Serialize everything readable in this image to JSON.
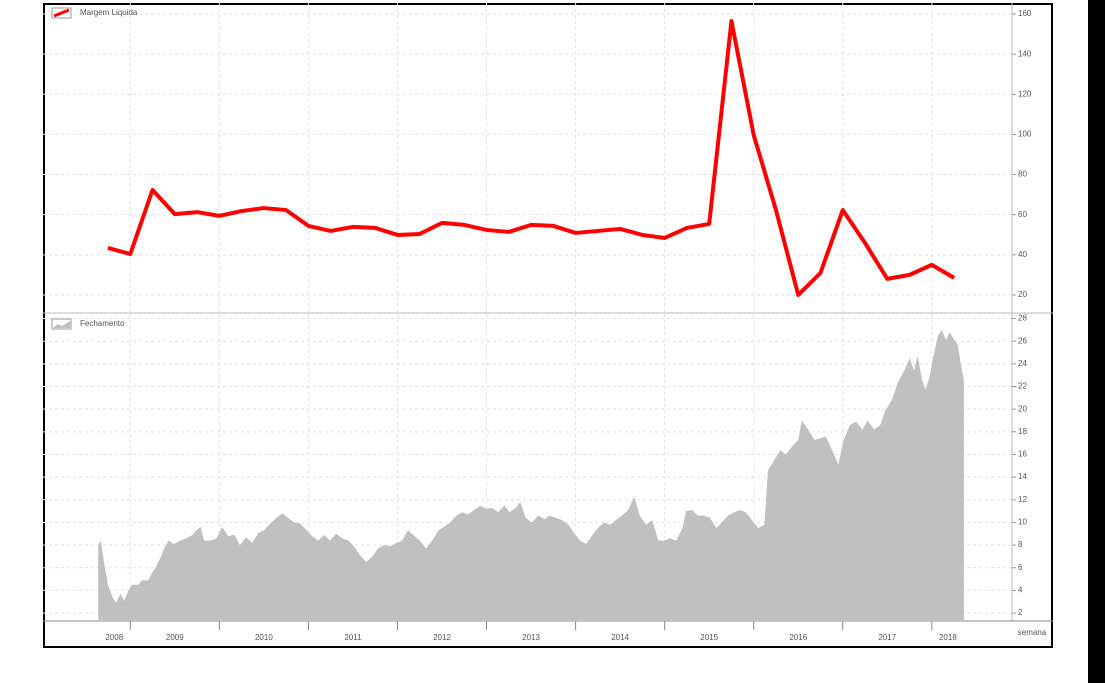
{
  "chart_data": [
    {
      "type": "line",
      "x": [
        2008.75,
        2009,
        2009.25,
        2009.5,
        2009.75,
        2010,
        2010.25,
        2010.5,
        2010.75,
        2011,
        2011.25,
        2011.5,
        2011.75,
        2012,
        2012.25,
        2012.5,
        2012.75,
        2013,
        2013.25,
        2013.5,
        2013.75,
        2014,
        2014.25,
        2014.5,
        2014.75,
        2015,
        2015.25,
        2015.5,
        2015.75,
        2016,
        2016.25,
        2016.5,
        2016.75,
        2017,
        2017.25,
        2017.5,
        2017.75,
        2018,
        2018.25
      ],
      "series": [
        {
          "name": "Margem Liquida",
          "color": "#ff0000",
          "values": [
            43.4,
            40.4,
            72.3,
            60.3,
            61.3,
            59.4,
            61.8,
            63.3,
            62.3,
            54.4,
            51.9,
            53.9,
            53.4,
            49.9,
            50.4,
            55.9,
            54.9,
            52.4,
            51.4,
            54.9,
            54.4,
            50.9,
            51.9,
            52.9,
            49.9,
            48.4,
            53.4,
            55.4,
            156.5,
            99.7,
            62.3,
            20,
            31,
            62.3,
            45.9,
            28,
            30,
            35,
            28.5
          ]
        }
      ],
      "xlim": [
        2008.02,
        2018.9
      ],
      "ylim": [
        11.5,
        165.5
      ],
      "yticks": [
        20,
        40,
        60,
        80,
        100,
        120,
        140,
        160
      ],
      "grid": true
    },
    {
      "type": "area",
      "x": [
        2008.64,
        2008.67,
        2008.71,
        2008.75,
        2008.8,
        2008.84,
        2008.89,
        2008.93,
        2008.98,
        2009.02,
        2009.09,
        2009.13,
        2009.2,
        2009.25,
        2009.29,
        2009.34,
        2009.38,
        2009.43,
        2009.49,
        2009.56,
        2009.63,
        2009.7,
        2009.74,
        2009.79,
        2009.83,
        2009.9,
        2009.97,
        2010.03,
        2010.1,
        2010.17,
        2010.23,
        2010.3,
        2010.37,
        2010.44,
        2010.5,
        2010.57,
        2010.64,
        2010.71,
        2010.77,
        2010.84,
        2010.91,
        2010.98,
        2011.04,
        2011.11,
        2011.18,
        2011.24,
        2011.31,
        2011.38,
        2011.45,
        2011.51,
        2011.58,
        2011.65,
        2011.72,
        2011.78,
        2011.85,
        2011.92,
        2011.99,
        2012.05,
        2012.12,
        2012.19,
        2012.25,
        2012.32,
        2012.39,
        2012.46,
        2012.52,
        2012.59,
        2012.66,
        2012.73,
        2012.79,
        2012.86,
        2012.93,
        2013,
        2013.06,
        2013.13,
        2013.2,
        2013.26,
        2013.33,
        2013.38,
        2013.44,
        2013.51,
        2013.58,
        2013.65,
        2013.71,
        2013.78,
        2013.85,
        2013.92,
        2013.98,
        2014.05,
        2014.12,
        2014.19,
        2014.25,
        2014.32,
        2014.39,
        2014.45,
        2014.52,
        2014.59,
        2014.66,
        2014.72,
        2014.79,
        2014.86,
        2014.93,
        2014.99,
        2015.06,
        2015.13,
        2015.2,
        2015.24,
        2015.31,
        2015.37,
        2015.44,
        2015.51,
        2015.58,
        2015.64,
        2015.71,
        2015.78,
        2015.85,
        2015.91,
        2015.98,
        2016.05,
        2016.12,
        2016.16,
        2016.23,
        2016.3,
        2016.36,
        2016.43,
        2016.5,
        2016.54,
        2016.61,
        2016.68,
        2016.74,
        2016.81,
        2016.88,
        2016.95,
        2017.01,
        2017.08,
        2017.15,
        2017.22,
        2017.28,
        2017.35,
        2017.42,
        2017.48,
        2017.55,
        2017.62,
        2017.69,
        2017.75,
        2017.8,
        2017.84,
        2017.89,
        2017.93,
        2017.98,
        2018.02,
        2018.07,
        2018.11,
        2018.16,
        2018.2,
        2018.25,
        2018.29,
        2018.34,
        2018.36
      ],
      "series": [
        {
          "name": "Fechamento",
          "color": "#c0c0c0",
          "values": [
            8.0,
            8.4,
            6.2,
            4.5,
            3.4,
            2.9,
            3.7,
            3.1,
            4.0,
            4.5,
            4.5,
            4.9,
            4.9,
            5.6,
            6.1,
            6.9,
            7.7,
            8.4,
            8.1,
            8.4,
            8.6,
            8.9,
            9.3,
            9.6,
            8.4,
            8.4,
            8.6,
            9.6,
            8.8,
            8.9,
            8.0,
            8.7,
            8.2,
            9.1,
            9.3,
            9.9,
            10.4,
            10.8,
            10.4,
            10.0,
            9.9,
            9.3,
            8.8,
            8.4,
            8.9,
            8.4,
            9.0,
            8.6,
            8.4,
            7.9,
            7.1,
            6.5,
            7.0,
            7.7,
            8.0,
            7.9,
            8.2,
            8.4,
            9.3,
            8.8,
            8.4,
            7.7,
            8.4,
            9.3,
            9.6,
            10.0,
            10.6,
            10.9,
            10.7,
            11.1,
            11.5,
            11.2,
            11.3,
            10.9,
            11.5,
            10.9,
            11.3,
            11.8,
            10.4,
            10.0,
            10.6,
            10.3,
            10.6,
            10.4,
            10.2,
            9.8,
            9.1,
            8.4,
            8.1,
            8.9,
            9.5,
            10.0,
            9.8,
            10.2,
            10.6,
            11.1,
            12.3,
            10.6,
            9.8,
            10.2,
            8.4,
            8.4,
            8.6,
            8.4,
            9.5,
            11.0,
            11.1,
            10.6,
            10.6,
            10.4,
            9.5,
            10.0,
            10.6,
            10.9,
            11.1,
            10.9,
            10.2,
            9.5,
            9.8,
            14.6,
            15.5,
            16.4,
            16.0,
            16.7,
            17.3,
            19.0,
            18.2,
            17.3,
            17.4,
            17.6,
            16.4,
            15.1,
            17.3,
            18.6,
            18.9,
            18.2,
            19.0,
            18.2,
            18.6,
            19.9,
            20.8,
            22.4,
            23.4,
            24.5,
            23.4,
            24.7,
            22.6,
            21.7,
            23.0,
            24.8,
            26.5,
            27.0,
            26.1,
            26.8,
            26.1,
            25.7,
            23.3,
            22.6
          ]
        }
      ],
      "xlim": [
        2008.02,
        2018.9
      ],
      "xticks": [
        2008,
        2009,
        2010,
        2011,
        2012,
        2013,
        2014,
        2015,
        2016,
        2017,
        2018
      ],
      "xlabel": "semana",
      "ylim": [
        1.3,
        28.4
      ],
      "yticks": [
        2,
        4,
        6,
        8,
        10,
        12,
        14,
        16,
        18,
        20,
        22,
        24,
        26,
        28
      ],
      "grid": true
    }
  ]
}
